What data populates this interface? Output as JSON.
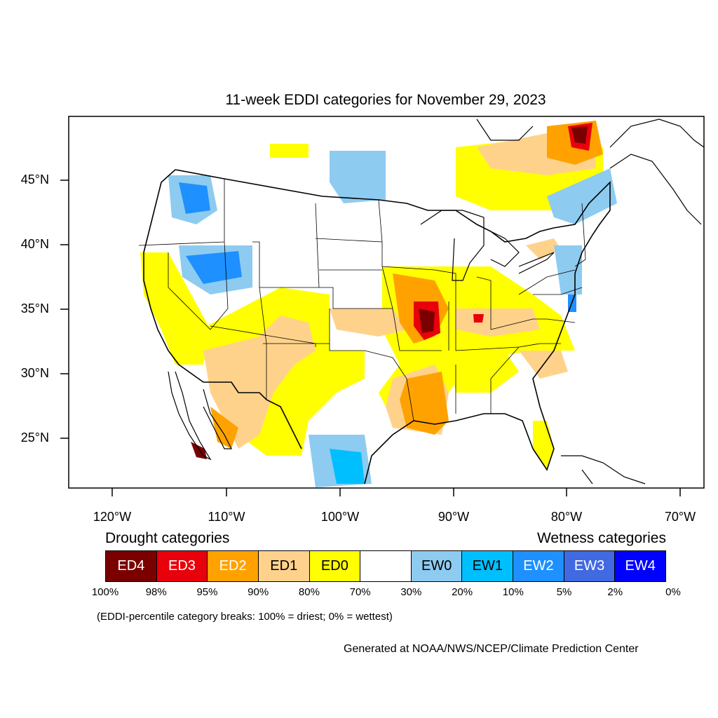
{
  "title": "11-week EDDI categories for November 29, 2023",
  "lat_labels": [
    "45°N",
    "40°N",
    "35°N",
    "30°N",
    "25°N"
  ],
  "lon_labels": [
    "120°W",
    "110°W",
    "100°W",
    "90°W",
    "80°W",
    "70°W"
  ],
  "legend": {
    "drought_title": "Drought categories",
    "wetness_title": "Wetness categories",
    "categories": [
      {
        "label": "ED4",
        "color": "#7a0000",
        "text_color": "#ffffff"
      },
      {
        "label": "ED3",
        "color": "#e8000b",
        "text_color": "#ffffff"
      },
      {
        "label": "ED2",
        "color": "#ffa200",
        "text_color": "#ffffff"
      },
      {
        "label": "ED1",
        "color": "#ffd28c",
        "text_color": "#000000"
      },
      {
        "label": "ED0",
        "color": "#ffff00",
        "text_color": "#000000"
      },
      {
        "label": "",
        "color": "#ffffff",
        "text_color": "#000000"
      },
      {
        "label": "EW0",
        "color": "#8ecbf0",
        "text_color": "#000000"
      },
      {
        "label": "EW1",
        "color": "#00bfff",
        "text_color": "#000000"
      },
      {
        "label": "EW2",
        "color": "#1e90ff",
        "text_color": "#ffffff"
      },
      {
        "label": "EW3",
        "color": "#4169e1",
        "text_color": "#ffffff"
      },
      {
        "label": "EW4",
        "color": "#0000ff",
        "text_color": "#ffffff"
      }
    ],
    "percent_breaks": [
      "100%",
      "98%",
      "95%",
      "90%",
      "80%",
      "70%",
      "30%",
      "20%",
      "10%",
      "5%",
      "2%",
      "0%"
    ]
  },
  "break_note": "(EDDI-percentile category breaks: 100% = driest; 0% = wettest)",
  "credit": "Generated at NOAA/NWS/NCEP/Climate Prediction Center"
}
